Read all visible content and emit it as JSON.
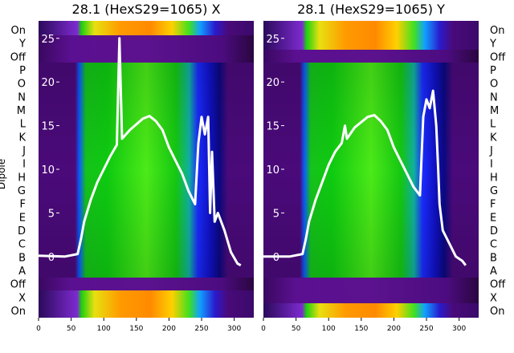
{
  "ylabel": "Dipole",
  "dipole_labels": [
    "On",
    "Y",
    "Off",
    "P",
    "O",
    "N",
    "M",
    "L",
    "K",
    "J",
    "I",
    "H",
    "G",
    "F",
    "E",
    "D",
    "C",
    "B",
    "A",
    "Off",
    "X",
    "On"
  ],
  "chart_data": [
    {
      "type": "heatmap",
      "title": "28.1 (HexS29=1065) X",
      "xlim": [
        0,
        330
      ],
      "x_ticks": [
        0,
        50,
        100,
        150,
        200,
        250,
        300
      ],
      "y_ticks": [
        0,
        5,
        10,
        15,
        20,
        25
      ],
      "ylim": [
        -7,
        27
      ],
      "colormap": "gnuplot2-like (purple-blue-green-yellow-orange)",
      "overlay": {
        "type": "line",
        "color": "#ffffff",
        "points": [
          [
            0,
            0.1
          ],
          [
            40,
            0
          ],
          [
            60,
            0.3
          ],
          [
            65,
            2
          ],
          [
            70,
            4
          ],
          [
            80,
            6.5
          ],
          [
            90,
            8.5
          ],
          [
            100,
            10
          ],
          [
            110,
            11.5
          ],
          [
            120,
            12.8
          ],
          [
            124,
            25
          ],
          [
            128,
            13.5
          ],
          [
            140,
            14.5
          ],
          [
            160,
            15.8
          ],
          [
            170,
            16.1
          ],
          [
            180,
            15.5
          ],
          [
            190,
            14.5
          ],
          [
            200,
            12.5
          ],
          [
            210,
            11
          ],
          [
            220,
            9.5
          ],
          [
            230,
            7.5
          ],
          [
            240,
            6
          ],
          [
            245,
            13
          ],
          [
            250,
            16
          ],
          [
            255,
            14
          ],
          [
            260,
            16
          ],
          [
            263,
            5
          ],
          [
            266,
            12
          ],
          [
            270,
            4
          ],
          [
            275,
            5
          ],
          [
            285,
            3
          ],
          [
            295,
            0.5
          ],
          [
            305,
            -0.8
          ],
          [
            310,
            -1
          ]
        ]
      }
    },
    {
      "type": "heatmap",
      "title": "28.1 (HexS29=1065) Y",
      "xlim": [
        0,
        330
      ],
      "x_ticks": [
        0,
        50,
        100,
        150,
        200,
        250,
        300
      ],
      "y_ticks": [
        0,
        5,
        10,
        15,
        20,
        25
      ],
      "ylim": [
        -7,
        27
      ],
      "colormap": "gnuplot2-like (purple-blue-green-yellow-orange)",
      "overlay": {
        "type": "line",
        "color": "#ffffff",
        "points": [
          [
            0,
            0
          ],
          [
            40,
            0
          ],
          [
            60,
            0.3
          ],
          [
            65,
            2
          ],
          [
            70,
            4
          ],
          [
            80,
            6.5
          ],
          [
            90,
            8.5
          ],
          [
            100,
            10.5
          ],
          [
            110,
            12
          ],
          [
            120,
            13
          ],
          [
            125,
            15
          ],
          [
            128,
            13.5
          ],
          [
            140,
            14.8
          ],
          [
            160,
            16
          ],
          [
            170,
            16.2
          ],
          [
            180,
            15.5
          ],
          [
            190,
            14.5
          ],
          [
            200,
            12.5
          ],
          [
            210,
            11
          ],
          [
            220,
            9.5
          ],
          [
            230,
            8
          ],
          [
            240,
            7
          ],
          [
            245,
            16
          ],
          [
            250,
            18
          ],
          [
            255,
            17
          ],
          [
            260,
            19
          ],
          [
            265,
            15
          ],
          [
            268,
            10
          ],
          [
            270,
            6
          ],
          [
            275,
            3
          ],
          [
            285,
            1.5
          ],
          [
            295,
            0
          ],
          [
            305,
            -0.5
          ],
          [
            310,
            -1
          ]
        ]
      }
    }
  ]
}
